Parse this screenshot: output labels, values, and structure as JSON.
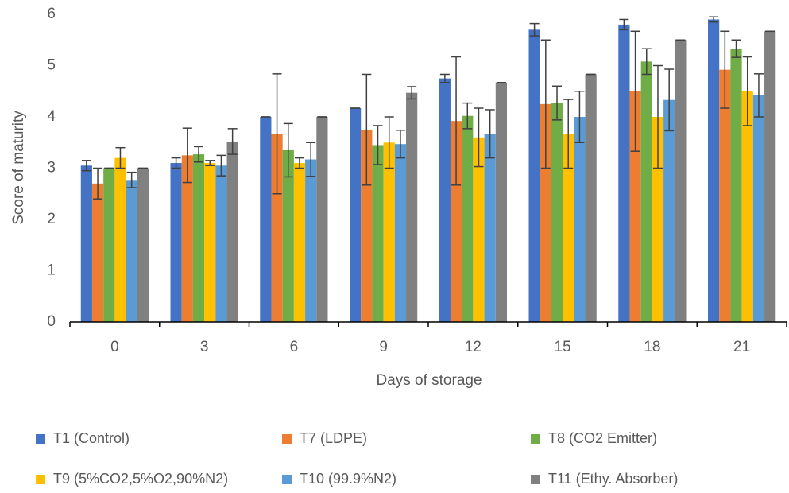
{
  "chart_data": {
    "type": "bar",
    "x_label": "Days of storage",
    "y_label": "Score of maturity",
    "categories": [
      "0",
      "3",
      "6",
      "9",
      "12",
      "15",
      "18",
      "21"
    ],
    "ylim": [
      0,
      6
    ],
    "yticks": [
      0,
      1,
      2,
      3,
      4,
      5,
      6
    ],
    "grid": false,
    "series": [
      {
        "name": "T1 (Control)",
        "color": "#4472c4",
        "values": [
          3.05,
          3.1,
          4.0,
          4.17,
          4.75,
          5.7,
          5.8,
          5.9
        ],
        "errors": [
          0.1,
          0.1,
          0,
          0,
          0.08,
          0.12,
          0.1,
          0.05
        ]
      },
      {
        "name": "T7 (LDPE)",
        "color": "#ed7d31",
        "values": [
          2.7,
          3.25,
          3.67,
          3.75,
          3.92,
          4.25,
          4.5,
          4.92
        ],
        "errors": [
          0.3,
          0.53,
          1.17,
          1.08,
          1.25,
          1.25,
          1.17,
          0.75
        ]
      },
      {
        "name": "T8 (CO2 Emitter)",
        "color": "#70ad47",
        "values": [
          3.0,
          3.27,
          3.35,
          3.45,
          4.02,
          4.27,
          5.08,
          5.33
        ],
        "errors": [
          0,
          0.15,
          0.52,
          0.38,
          0.25,
          0.33,
          0.25,
          0.17
        ]
      },
      {
        "name": "T9 (5%CO2,5%O2,90%N2)",
        "color": "#ffc000",
        "values": [
          3.2,
          3.1,
          3.1,
          3.5,
          3.6,
          3.67,
          4.0,
          4.5
        ],
        "errors": [
          0.2,
          0.05,
          0.1,
          0.5,
          0.57,
          0.67,
          1.0,
          0.67
        ]
      },
      {
        "name": "T10 (99.9%N2)",
        "color": "#5b9bd5",
        "values": [
          2.77,
          3.05,
          3.17,
          3.47,
          3.67,
          4.0,
          4.33,
          4.42
        ],
        "errors": [
          0.15,
          0.2,
          0.33,
          0.27,
          0.47,
          0.5,
          0.6,
          0.42
        ]
      },
      {
        "name": "T11 (Ethy. Absorber)",
        "color": "#808080",
        "values": [
          3.0,
          3.52,
          4.0,
          4.47,
          4.67,
          4.83,
          5.5,
          5.67
        ],
        "errors": [
          0,
          0.25,
          0,
          0.12,
          0,
          0,
          0,
          0
        ]
      }
    ]
  }
}
